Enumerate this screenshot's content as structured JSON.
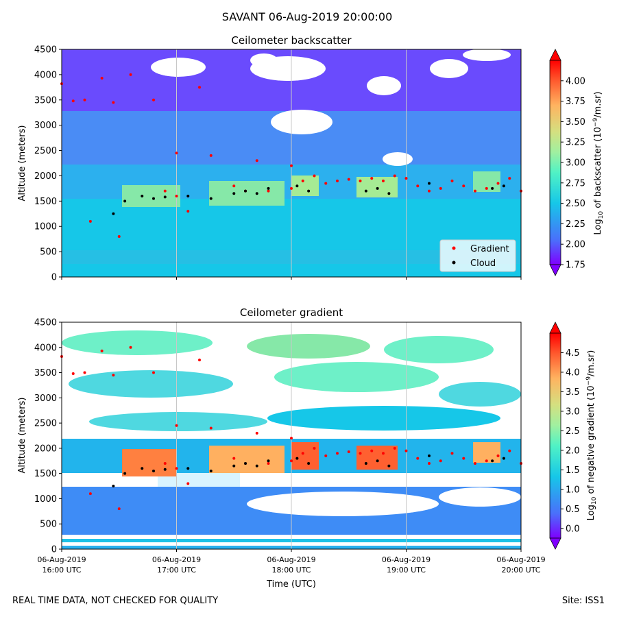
{
  "suptitle": "SAVANT 06-Aug-2019 20:00:00",
  "footer": {
    "left": "REAL TIME DATA, NOT CHECKED FOR QUALITY",
    "right": "Site: ISS1"
  },
  "colors": {
    "gradient_marker": "#ff0000",
    "cloud_marker": "#000000",
    "colormap": [
      "#7f00ff",
      "#4a6ffb",
      "#16c7e8",
      "#50f2c5",
      "#a0f0a0",
      "#d4e080",
      "#ffb360",
      "#ff5a2e",
      "#ff0000"
    ]
  },
  "chart_data": [
    {
      "type": "heatmap",
      "title": "Ceilometer backscatter",
      "xlabel": "",
      "ylabel": "Altitude (meters)",
      "ylim": [
        0,
        4500
      ],
      "yticks": [
        "0",
        "500",
        "1000",
        "1500",
        "2000",
        "2500",
        "3000",
        "3500",
        "4000",
        "4500"
      ],
      "xlim": [
        "06-Aug-2019 16:00 UTC",
        "06-Aug-2019 20:00 UTC"
      ],
      "colorbar": {
        "label": "Log10 of backscatter (10^-9/m.sr)",
        "range": [
          1.75,
          4.25
        ],
        "ticks": [
          "1.75",
          "2.00",
          "2.25",
          "2.50",
          "2.75",
          "3.00",
          "3.25",
          "3.50",
          "3.75",
          "4.00"
        ]
      },
      "legend": {
        "position": "lower-right",
        "entries": [
          "Gradient",
          "Cloud"
        ]
      },
      "grid": "vertical lines at hourly ticks",
      "series": [
        {
          "name": "Gradient",
          "marker": "red dots",
          "points_hours_altitude": [
            [
              0.0,
              3820
            ],
            [
              0.1,
              3480
            ],
            [
              0.2,
              3500
            ],
            [
              0.25,
              1100
            ],
            [
              0.35,
              3930
            ],
            [
              0.45,
              3450
            ],
            [
              0.5,
              800
            ],
            [
              0.6,
              4000
            ],
            [
              0.8,
              3500
            ],
            [
              0.9,
              1700
            ],
            [
              1.0,
              2450
            ],
            [
              1.0,
              1600
            ],
            [
              1.1,
              1300
            ],
            [
              1.2,
              3750
            ],
            [
              1.3,
              2400
            ],
            [
              1.5,
              1800
            ],
            [
              1.6,
              1700
            ],
            [
              1.7,
              2300
            ],
            [
              1.8,
              1700
            ],
            [
              2.0,
              2200
            ],
            [
              2.0,
              1750
            ],
            [
              2.1,
              1900
            ],
            [
              2.2,
              2000
            ],
            [
              2.3,
              1850
            ],
            [
              2.4,
              1900
            ],
            [
              2.5,
              1930
            ],
            [
              2.6,
              1900
            ],
            [
              2.7,
              1950
            ],
            [
              2.8,
              1900
            ],
            [
              2.9,
              2000
            ],
            [
              3.0,
              1950
            ],
            [
              3.1,
              1800
            ],
            [
              3.2,
              1700
            ],
            [
              3.3,
              1750
            ],
            [
              3.4,
              1900
            ],
            [
              3.5,
              1800
            ],
            [
              3.6,
              1700
            ],
            [
              3.7,
              1750
            ],
            [
              3.8,
              1850
            ],
            [
              3.9,
              1950
            ],
            [
              4.0,
              1700
            ]
          ]
        },
        {
          "name": "Cloud",
          "marker": "black dots",
          "points_hours_altitude": [
            [
              0.45,
              1250
            ],
            [
              0.55,
              1500
            ],
            [
              0.7,
              1600
            ],
            [
              0.8,
              1550
            ],
            [
              0.9,
              1580
            ],
            [
              1.1,
              1600
            ],
            [
              1.3,
              1550
            ],
            [
              1.5,
              1650
            ],
            [
              1.6,
              1700
            ],
            [
              1.7,
              1650
            ],
            [
              1.8,
              1750
            ],
            [
              2.05,
              1800
            ],
            [
              2.15,
              1700
            ],
            [
              2.65,
              1700
            ],
            [
              2.75,
              1750
            ],
            [
              2.85,
              1650
            ],
            [
              3.2,
              1850
            ],
            [
              3.75,
              1750
            ],
            [
              3.85,
              1800
            ]
          ]
        }
      ]
    },
    {
      "type": "heatmap",
      "title": "Ceilometer gradient",
      "xlabel": "Time (UTC)",
      "ylabel": "Altitude (meters)",
      "ylim": [
        0,
        4500
      ],
      "yticks": [
        "0",
        "500",
        "1000",
        "1500",
        "2000",
        "2500",
        "3000",
        "3500",
        "4000",
        "4500"
      ],
      "xlim": [
        "06-Aug-2019 16:00 UTC",
        "06-Aug-2019 20:00 UTC"
      ],
      "xticks": [
        [
          "06-Aug-2019",
          "16:00 UTC"
        ],
        [
          "06-Aug-2019",
          "17:00 UTC"
        ],
        [
          "06-Aug-2019",
          "18:00 UTC"
        ],
        [
          "06-Aug-2019",
          "19:00 UTC"
        ],
        [
          "06-Aug-2019",
          "20:00 UTC"
        ]
      ],
      "colorbar": {
        "label": "Log10 of negative gradient (10^-9/m.sr)",
        "range": [
          -0.25,
          5.0
        ],
        "ticks": [
          "0.0",
          "0.5",
          "1.0",
          "1.5",
          "2.0",
          "2.5",
          "3.0",
          "3.5",
          "4.0",
          "4.5"
        ]
      },
      "grid": "vertical lines at hourly ticks"
    }
  ]
}
